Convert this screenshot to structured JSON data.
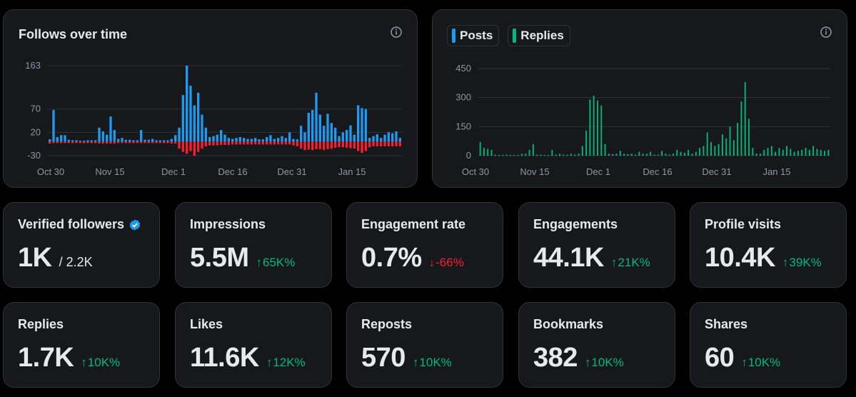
{
  "follows_chart": {
    "title": "Follows over time",
    "info_icon": "info-icon",
    "colors": {
      "positive": "#1d9bf0",
      "negative": "#f4212e",
      "grid": "#2f3336"
    },
    "y_ticks": [
      "163",
      "70",
      "20",
      "-30"
    ],
    "x_ticks": [
      "Oct 30",
      "Nov 15",
      "Dec 1",
      "Dec 16",
      "Dec 31",
      "Jan 15"
    ]
  },
  "posts_chart": {
    "info_icon": "info-icon",
    "legend": [
      {
        "label": "Posts",
        "color": "#1d9bf0"
      },
      {
        "label": "Replies",
        "color": "#00ba7c"
      }
    ],
    "y_ticks": [
      "450",
      "300",
      "150",
      "0"
    ],
    "x_ticks": [
      "Oct 30",
      "Nov 15",
      "Dec 1",
      "Dec 16",
      "Dec 31",
      "Jan 15"
    ]
  },
  "chart_data": [
    {
      "type": "bar",
      "title": "Follows over time",
      "x_ticks": [
        "Oct 30",
        "Nov 15",
        "Dec 1",
        "Dec 16",
        "Dec 31",
        "Jan 15"
      ],
      "ylim": [
        -30,
        163
      ],
      "series": [
        {
          "color": "#1d9bf0",
          "values": [
            5,
            68,
            10,
            14,
            14,
            4,
            3,
            3,
            2,
            2,
            3,
            3,
            3,
            30,
            22,
            15,
            54,
            25,
            6,
            8,
            4,
            4,
            3,
            3,
            25,
            4,
            4,
            6,
            3,
            3,
            3,
            3,
            6,
            14,
            30,
            100,
            163,
            120,
            78,
            105,
            58,
            30,
            10,
            12,
            15,
            25,
            15,
            8,
            6,
            8,
            10,
            8,
            6,
            6,
            8,
            5,
            5,
            10,
            14,
            6,
            8,
            12,
            8,
            20,
            6,
            5,
            34,
            20,
            62,
            68,
            105,
            58,
            34,
            60,
            40,
            30,
            12,
            20,
            25,
            35,
            15,
            78,
            72,
            70,
            8,
            12,
            16,
            8,
            15,
            20,
            18,
            22,
            8
          ]
        },
        {
          "color": "#f4212e",
          "values": [
            -4,
            -3,
            -3,
            -3,
            -3,
            -3,
            -3,
            -3,
            -3,
            -3,
            -3,
            -3,
            -3,
            -4,
            -4,
            -4,
            -4,
            -4,
            -3,
            -3,
            -3,
            -3,
            -3,
            -3,
            -3,
            -3,
            -3,
            -3,
            -3,
            -3,
            -3,
            -3,
            -4,
            -4,
            -15,
            -22,
            -26,
            -20,
            -30,
            -22,
            -15,
            -10,
            -8,
            -8,
            -8,
            -7,
            -7,
            -7,
            -6,
            -6,
            -6,
            -6,
            -6,
            -6,
            -6,
            -6,
            -6,
            -6,
            -6,
            -6,
            -6,
            -6,
            -6,
            -6,
            -8,
            -10,
            -15,
            -18,
            -17,
            -18,
            -16,
            -16,
            -18,
            -16,
            -15,
            -13,
            -12,
            -12,
            -13,
            -14,
            -15,
            -20,
            -24,
            -20,
            -12,
            -10,
            -10,
            -10,
            -10,
            -10,
            -10,
            -10,
            -10
          ]
        }
      ]
    },
    {
      "type": "bar",
      "x_ticks": [
        "Oct 30",
        "Nov 15",
        "Dec 1",
        "Dec 16",
        "Dec 31",
        "Jan 15"
      ],
      "ylim": [
        0,
        450
      ],
      "series": [
        {
          "name": "Posts",
          "color": "#1d9bf0",
          "values": [
            5,
            3,
            3,
            3,
            3,
            3,
            3,
            3,
            3,
            3,
            3,
            3,
            3,
            3,
            3,
            3,
            3,
            3,
            3,
            3,
            3,
            3,
            3,
            3,
            3,
            3,
            3,
            3,
            3,
            5,
            5,
            5,
            5,
            5,
            8,
            8,
            10,
            8,
            6,
            8,
            6,
            5,
            5,
            5,
            5,
            5,
            5,
            5,
            5,
            5,
            5,
            5,
            5,
            5,
            5,
            8,
            5,
            5,
            5,
            5,
            5,
            5,
            6,
            8,
            10,
            12,
            10,
            12,
            10,
            10,
            12,
            10,
            10,
            10,
            10,
            10,
            10,
            12,
            12,
            10,
            10,
            10,
            10,
            10,
            8,
            8,
            8,
            10,
            10,
            10,
            10,
            10,
            10
          ]
        },
        {
          "name": "Replies",
          "color": "#00ba7c",
          "values": [
            70,
            40,
            35,
            30,
            5,
            3,
            3,
            5,
            3,
            3,
            3,
            10,
            10,
            30,
            60,
            5,
            5,
            3,
            3,
            30,
            5,
            10,
            5,
            5,
            10,
            5,
            10,
            50,
            130,
            290,
            310,
            285,
            260,
            60,
            10,
            5,
            5,
            25,
            10,
            5,
            10,
            5,
            20,
            10,
            10,
            20,
            5,
            5,
            25,
            10,
            5,
            10,
            30,
            20,
            15,
            30,
            10,
            20,
            40,
            50,
            120,
            70,
            50,
            60,
            110,
            90,
            150,
            80,
            170,
            280,
            380,
            190,
            40,
            10,
            5,
            30,
            40,
            50,
            20,
            40,
            30,
            50,
            35,
            20,
            25,
            30,
            40,
            30,
            50,
            35,
            30,
            25,
            30
          ]
        }
      ]
    }
  ],
  "stats": [
    {
      "label": "Verified followers",
      "value": "1K",
      "sub": "/ 2.2K",
      "verified": true,
      "icon": "verified-badge-icon"
    },
    {
      "label": "Impressions",
      "value": "5.5M",
      "delta": "65K%",
      "direction": "up"
    },
    {
      "label": "Engagement rate",
      "value": "0.7%",
      "delta": "-66%",
      "direction": "down"
    },
    {
      "label": "Engagements",
      "value": "44.1K",
      "delta": "21K%",
      "direction": "up"
    },
    {
      "label": "Profile visits",
      "value": "10.4K",
      "delta": "39K%",
      "direction": "up"
    },
    {
      "label": "Replies",
      "value": "1.7K",
      "delta": "10K%",
      "direction": "up"
    },
    {
      "label": "Likes",
      "value": "11.6K",
      "delta": "12K%",
      "direction": "up"
    },
    {
      "label": "Reposts",
      "value": "570",
      "delta": "10K%",
      "direction": "up"
    },
    {
      "label": "Bookmarks",
      "value": "382",
      "delta": "10K%",
      "direction": "up"
    },
    {
      "label": "Shares",
      "value": "60",
      "delta": "10K%",
      "direction": "up"
    }
  ]
}
